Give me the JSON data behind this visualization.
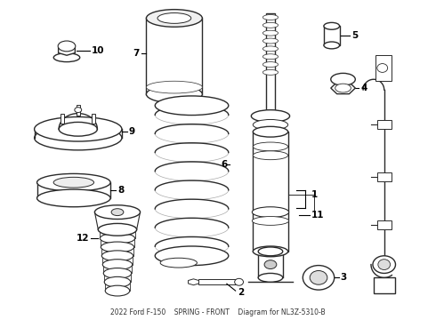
{
  "title": "2022 Ford F-150    SPRING - FRONT    Diagram for NL3Z-5310-B",
  "background_color": "#ffffff",
  "line_color": "#2a2a2a",
  "label_color": "#000000"
}
